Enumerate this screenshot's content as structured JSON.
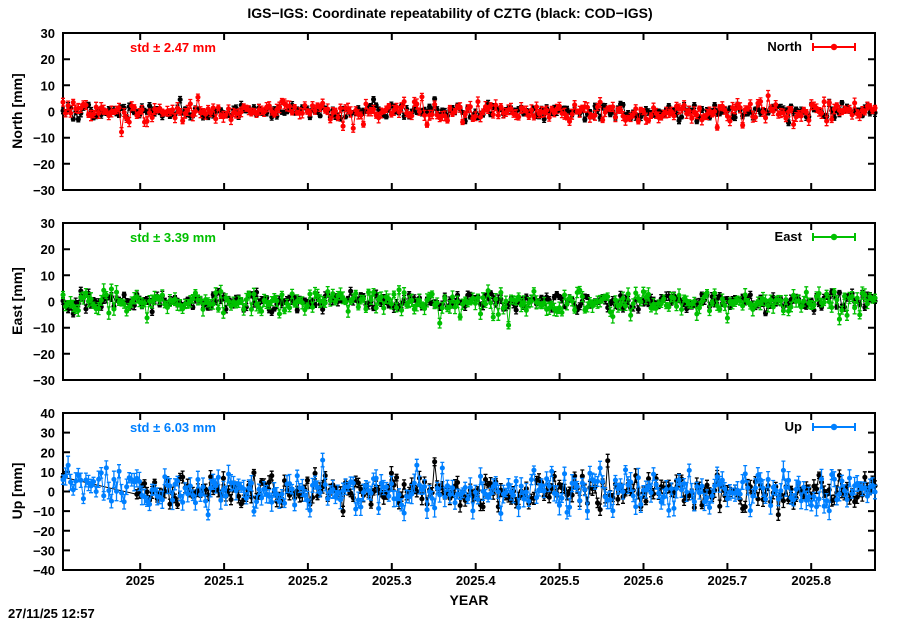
{
  "title": "IGS−IGS: Coordinate repeatability of CZTG (black: COD−IGS)",
  "timestamp": "27/11/25 12:57",
  "x_axis": {
    "label": "YEAR",
    "lim": [
      2024.908,
      2025.876
    ],
    "tick_values": [
      2025,
      2025.1,
      2025.2,
      2025.3,
      2025.4,
      2025.5,
      2025.6,
      2025.7,
      2025.8
    ],
    "tick_labels": [
      "2025",
      "2025.1",
      "2025.2",
      "2025.3",
      "2025.4",
      "2025.5",
      "2025.6",
      "2025.7",
      "2025.8"
    ]
  },
  "chart_data": [
    {
      "type": "scatter",
      "panel": "north",
      "ylabel": "North [mm]",
      "legend_label": "North",
      "std_label": "std ± 2.47 mm",
      "std_mm": 2.47,
      "accent_color": "#ff0000",
      "ylim": [
        -30,
        30
      ],
      "ytick_values": [
        30,
        20,
        10,
        0,
        -10,
        -20,
        -30
      ],
      "ytick_labels": [
        "30",
        "20",
        "10",
        "0",
        "−10",
        "−20",
        "−30"
      ],
      "show_x_tick_labels": false,
      "series": [
        {
          "name": "COD−IGS",
          "color": "#000000",
          "n": 320,
          "sigma": 1.4,
          "err": 1.0,
          "seed": 101,
          "outlier_prob": 0.015,
          "outlier_scale": 1.5
        },
        {
          "name": "IGS−IGS",
          "color": "#ff0000",
          "n": 320,
          "sigma": 1.8,
          "err": 1.5,
          "seed": 202,
          "outlier_prob": 0.05,
          "outlier_scale": 2.2,
          "outlier_sign": -1
        }
      ]
    },
    {
      "type": "scatter",
      "panel": "east",
      "ylabel": "East [mm]",
      "legend_label": "East",
      "std_label": "std ± 3.39 mm",
      "std_mm": 3.39,
      "accent_color": "#00c000",
      "ylim": [
        -30,
        30
      ],
      "ytick_values": [
        30,
        20,
        10,
        0,
        -10,
        -20,
        -30
      ],
      "ytick_labels": [
        "30",
        "20",
        "10",
        "0",
        "−10",
        "−20",
        "−30"
      ],
      "show_x_tick_labels": false,
      "series": [
        {
          "name": "COD−IGS",
          "color": "#000000",
          "n": 320,
          "sigma": 1.7,
          "err": 1.2,
          "seed": 303,
          "outlier_prob": 0.01,
          "outlier_scale": 1.5
        },
        {
          "name": "IGS−IGS",
          "color": "#00c000",
          "n": 320,
          "sigma": 2.2,
          "err": 1.8,
          "seed": 404,
          "outlier_prob": 0.07,
          "outlier_scale": 2.8,
          "outlier_sign": -1
        }
      ]
    },
    {
      "type": "scatter",
      "panel": "up",
      "ylabel": "Up [mm]",
      "legend_label": "Up",
      "std_label": "std ± 6.03 mm",
      "std_mm": 6.03,
      "accent_color": "#0080ff",
      "ylim": [
        -40,
        40
      ],
      "ytick_values": [
        40,
        30,
        20,
        10,
        0,
        -10,
        -20,
        -30,
        -40
      ],
      "ytick_labels": [
        "40",
        "30",
        "20",
        "10",
        "0",
        "−10",
        "−20",
        "−30",
        "−40"
      ],
      "show_x_tick_labels": true,
      "series": [
        {
          "name": "COD−IGS",
          "color": "#000000",
          "n": 320,
          "sigma": 4.2,
          "err": 2.5,
          "seed": 505,
          "outlier_prob": 0.03,
          "outlier_scale": 2.5,
          "start_gap": 0.09
        },
        {
          "name": "IGS−IGS",
          "color": "#0080ff",
          "n": 320,
          "sigma": 5.0,
          "err": 3.5,
          "seed": 606,
          "outlier_prob": 0.05,
          "outlier_scale": 2.8,
          "early_bias": {
            "frac": 0.055,
            "amount": 6.5
          }
        }
      ]
    }
  ]
}
